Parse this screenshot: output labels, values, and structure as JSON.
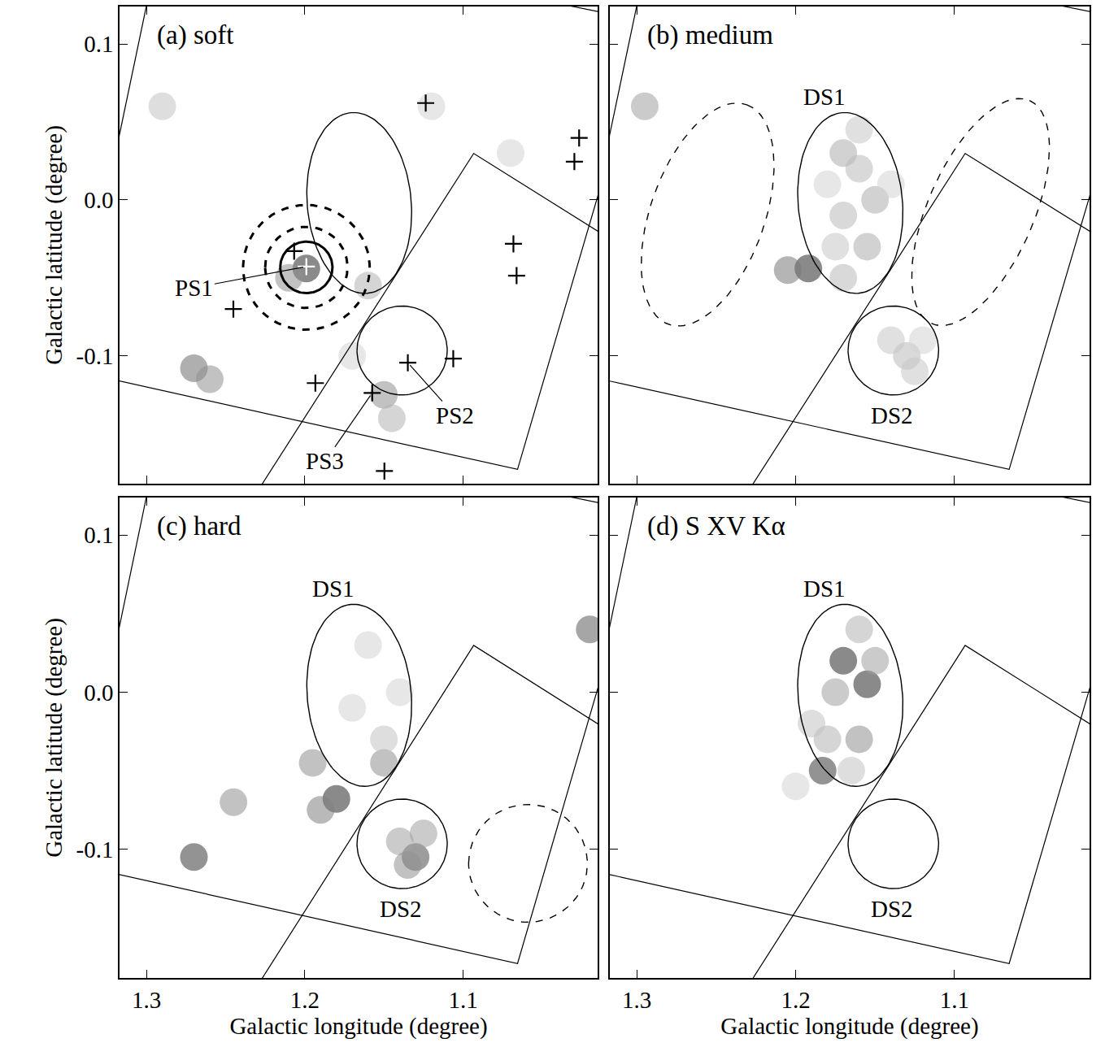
{
  "chart_data": [
    {
      "type": "scatter",
      "title": "(a) soft",
      "ylabel": "Galactic latitude (degree)",
      "xlim": [
        1.317,
        1.015
      ],
      "ylim": [
        -0.182,
        0.124
      ],
      "xticks": [
        1.3,
        1.2,
        1.1
      ],
      "yticks": [
        0.1,
        {
          "value": 0,
          "label": "0.0"
        },
        -0.1
      ],
      "grid": false,
      "tick_labels": "y",
      "emission": {
        "l": [
          1.199,
          1.27,
          1.26,
          1.16,
          1.15,
          1.145,
          1.29,
          1.17,
          1.07,
          1.12,
          1.21
        ],
        "b": [
          -0.044,
          -0.108,
          -0.115,
          -0.055,
          -0.125,
          -0.14,
          0.06,
          -0.1,
          0.03,
          0.06,
          -0.05
        ],
        "level": [
          0.8,
          0.6,
          0.5,
          0.4,
          0.5,
          0.4,
          0.35,
          0.3,
          0.3,
          0.3,
          0.5
        ]
      },
      "field_edges": [
        [
          [
            1.24,
            -0.203
          ],
          [
            1.0933,
            0.0298
          ],
          [
            1.0,
            -0.0296
          ]
        ],
        [
          [
            1.34,
            -0.111
          ],
          [
            1.0656,
            -0.1728
          ],
          [
            1.0,
            0.054
          ]
        ],
        [
          [
            1.33,
            -0.021
          ],
          [
            1.29,
            0.173
          ]
        ],
        [
          [
            1.05,
            0.128
          ],
          [
            1.0,
            0.1177
          ]
        ]
      ],
      "regions": [
        {
          "shape": "ellipse",
          "center": [
            1.1656,
            -0.002
          ],
          "semi_major": [
            0.0052,
            0.0579
          ],
          "semi_minor": [
            -0.0327,
            0.003
          ],
          "line_style": "solid"
        },
        {
          "shape": "circle",
          "center": [
            1.1385,
            -0.0966
          ],
          "radius": 0.0285,
          "line_style": "solid"
        },
        {
          "shape": "circle",
          "center": [
            1.199,
            -0.0433
          ],
          "radius": 0.0165,
          "line_style": "thick solid"
        },
        {
          "shape": "circle",
          "center": [
            1.199,
            -0.0433
          ],
          "radius": 0.026,
          "line_style": "thick dashed"
        },
        {
          "shape": "circle",
          "center": [
            1.199,
            -0.0433
          ],
          "radius": 0.04,
          "line_style": "thick dashed"
        }
      ],
      "sources": {
        "marker": "cross",
        "l": [
          1.2067,
          1.199,
          1.2451,
          1.1236,
          1.0267,
          1.0297,
          1.0682,
          1.0662,
          1.1349,
          1.1062,
          1.1933,
          1.1574,
          1.1497
        ],
        "b": [
          -0.0329,
          -0.0428,
          -0.07,
          0.0621,
          0.0397,
          0.0245,
          -0.0282,
          -0.0486,
          -0.1044,
          -0.1018,
          -0.1175,
          -0.1238,
          -0.1739
        ],
        "colors": [
          "black",
          "white",
          "black",
          "black",
          "black",
          "black",
          "black",
          "black",
          "black",
          "black",
          "black",
          "black",
          "black"
        ]
      },
      "labels": [
        {
          "text": "PS1",
          "at": [
            1.199,
            -0.0428
          ]
        },
        {
          "text": "PS2",
          "at": [
            1.1349,
            -0.1044
          ]
        },
        {
          "text": "PS3",
          "at": [
            1.1574,
            -0.1238
          ]
        }
      ]
    },
    {
      "type": "scatter",
      "title": "(b) medium",
      "xlim": [
        1.317,
        1.015
      ],
      "ylim": [
        -0.182,
        0.124
      ],
      "xticks": [
        1.3,
        1.2,
        1.1
      ],
      "yticks": [
        0.1,
        {
          "value": 0,
          "label": "0.0"
        },
        -0.1
      ],
      "grid": false,
      "tick_labels": false,
      "emission": {
        "l": [
          1.192,
          1.205,
          1.17,
          1.16,
          1.15,
          1.17,
          1.155,
          1.175,
          1.16,
          1.18,
          1.14,
          1.17,
          1.13,
          1.14,
          1.125,
          1.12,
          1.295
        ],
        "b": [
          -0.044,
          -0.045,
          0.03,
          0.02,
          0.0,
          -0.01,
          -0.03,
          -0.03,
          0.045,
          0.01,
          0.01,
          -0.05,
          -0.1,
          -0.09,
          -0.11,
          -0.09,
          0.06
        ],
        "level": [
          1.0,
          0.7,
          0.5,
          0.45,
          0.5,
          0.45,
          0.5,
          0.4,
          0.4,
          0.35,
          0.35,
          0.45,
          0.45,
          0.4,
          0.4,
          0.35,
          0.55
        ]
      },
      "field_edges": [
        [
          [
            1.24,
            -0.203
          ],
          [
            1.0933,
            0.0298
          ],
          [
            1.0,
            -0.0296
          ]
        ],
        [
          [
            1.34,
            -0.111
          ],
          [
            1.0656,
            -0.1728
          ],
          [
            1.0,
            0.054
          ]
        ],
        [
          [
            1.33,
            -0.021
          ],
          [
            1.29,
            0.173
          ]
        ],
        [
          [
            1.05,
            0.128
          ],
          [
            1.0,
            0.1177
          ]
        ]
      ],
      "regions": [
        {
          "shape": "ellipse",
          "center": [
            1.1656,
            -0.002
          ],
          "semi_major": [
            0.0052,
            0.0579
          ],
          "semi_minor": [
            -0.0327,
            0.003
          ],
          "line_style": "solid",
          "label": "DS1",
          "label_at": [
            1.182,
            0.066
          ]
        },
        {
          "shape": "circle",
          "center": [
            1.1385,
            -0.0966
          ],
          "radius": 0.0285,
          "line_style": "solid",
          "label": "DS2",
          "label_at": [
            1.1394,
            -0.138
          ]
        },
        {
          "shape": "ellipse",
          "center": [
            1.2554,
            -0.0094
          ],
          "semi_major": [
            -0.0246,
            0.0704
          ],
          "semi_minor": [
            -0.0338,
            -0.0123
          ],
          "line_style": "dashed"
        },
        {
          "shape": "ellipse",
          "center": [
            1.0836,
            -0.0078
          ],
          "semi_major": [
            -0.0308,
            0.0715
          ],
          "semi_minor": [
            -0.0305,
            -0.0136
          ],
          "line_style": "dashed"
        }
      ]
    },
    {
      "type": "scatter",
      "title": "(c) hard",
      "xlabel": "Galactic longitude (degree)",
      "ylabel": "Galactic latitude (degree)",
      "xlim": [
        1.317,
        1.015
      ],
      "ylim": [
        -0.182,
        0.124
      ],
      "xticks": [
        1.3,
        1.2,
        1.1
      ],
      "yticks": [
        0.1,
        {
          "value": 0,
          "label": "0.0"
        },
        -0.1
      ],
      "grid": false,
      "emission": {
        "l": [
          1.13,
          1.14,
          1.125,
          1.135,
          1.18,
          1.19,
          1.195,
          1.15,
          1.15,
          1.27,
          1.245,
          1.02,
          1.16,
          1.14,
          1.17
        ],
        "b": [
          -0.105,
          -0.095,
          -0.09,
          -0.11,
          -0.068,
          -0.075,
          -0.045,
          -0.045,
          -0.03,
          -0.105,
          -0.07,
          0.04,
          0.03,
          0.0,
          -0.01
        ],
        "level": [
          0.75,
          0.5,
          0.5,
          0.55,
          0.85,
          0.6,
          0.55,
          0.55,
          0.4,
          0.8,
          0.55,
          0.7,
          0.35,
          0.35,
          0.35
        ]
      },
      "field_edges": [
        [
          [
            1.24,
            -0.203
          ],
          [
            1.0933,
            0.0298
          ],
          [
            1.0,
            -0.0296
          ]
        ],
        [
          [
            1.34,
            -0.111
          ],
          [
            1.0656,
            -0.1728
          ],
          [
            1.0,
            0.054
          ]
        ],
        [
          [
            1.33,
            -0.021
          ],
          [
            1.29,
            0.173
          ]
        ],
        [
          [
            1.05,
            0.128
          ],
          [
            1.0,
            0.1177
          ]
        ]
      ],
      "regions": [
        {
          "shape": "ellipse",
          "center": [
            1.1656,
            -0.002
          ],
          "semi_major": [
            0.0052,
            0.0579
          ],
          "semi_minor": [
            -0.0327,
            0.003
          ],
          "line_style": "solid",
          "label": "DS1",
          "label_at": [
            1.182,
            0.066
          ]
        },
        {
          "shape": "circle",
          "center": [
            1.1385,
            -0.0966
          ],
          "radius": 0.0285,
          "line_style": "solid",
          "label": "DS2",
          "label_at": [
            1.1394,
            -0.138
          ]
        },
        {
          "shape": "circle",
          "center": [
            1.059,
            -0.109
          ],
          "radius": 0.0375,
          "line_style": "dashed"
        }
      ]
    },
    {
      "type": "scatter",
      "title": "(d) S XV Kα",
      "xlabel": "Galactic longitude (degree)",
      "xlim": [
        1.317,
        1.015
      ],
      "ylim": [
        -0.182,
        0.124
      ],
      "xticks": [
        1.3,
        1.2,
        1.1
      ],
      "yticks": [
        0.1,
        {
          "value": 0,
          "label": "0.0"
        },
        -0.1
      ],
      "grid": false,
      "tick_labels": "x",
      "emission": {
        "l": [
          1.17,
          1.155,
          1.183,
          1.16,
          1.175,
          1.16,
          1.18,
          1.19,
          1.15,
          1.165,
          1.2
        ],
        "b": [
          0.02,
          0.005,
          -0.05,
          0.04,
          0.0,
          -0.03,
          -0.03,
          -0.02,
          0.02,
          -0.05,
          -0.06
        ],
        "level": [
          0.95,
          0.95,
          0.9,
          0.55,
          0.6,
          0.65,
          0.55,
          0.5,
          0.6,
          0.5,
          0.45
        ]
      },
      "field_edges": [
        [
          [
            1.24,
            -0.203
          ],
          [
            1.0933,
            0.0298
          ],
          [
            1.0,
            -0.0296
          ]
        ],
        [
          [
            1.34,
            -0.111
          ],
          [
            1.0656,
            -0.1728
          ],
          [
            1.0,
            0.054
          ]
        ],
        [
          [
            1.33,
            -0.021
          ],
          [
            1.29,
            0.173
          ]
        ],
        [
          [
            1.05,
            0.128
          ],
          [
            1.0,
            0.1177
          ]
        ]
      ],
      "regions": [
        {
          "shape": "ellipse",
          "center": [
            1.1656,
            -0.002
          ],
          "semi_major": [
            0.0052,
            0.0579
          ],
          "semi_minor": [
            -0.0327,
            0.003
          ],
          "line_style": "solid",
          "label": "DS1",
          "label_at": [
            1.182,
            0.066
          ]
        },
        {
          "shape": "circle",
          "center": [
            1.1385,
            -0.0966
          ],
          "radius": 0.0285,
          "line_style": "solid",
          "label": "DS2",
          "label_at": [
            1.1394,
            -0.138
          ]
        }
      ]
    }
  ]
}
